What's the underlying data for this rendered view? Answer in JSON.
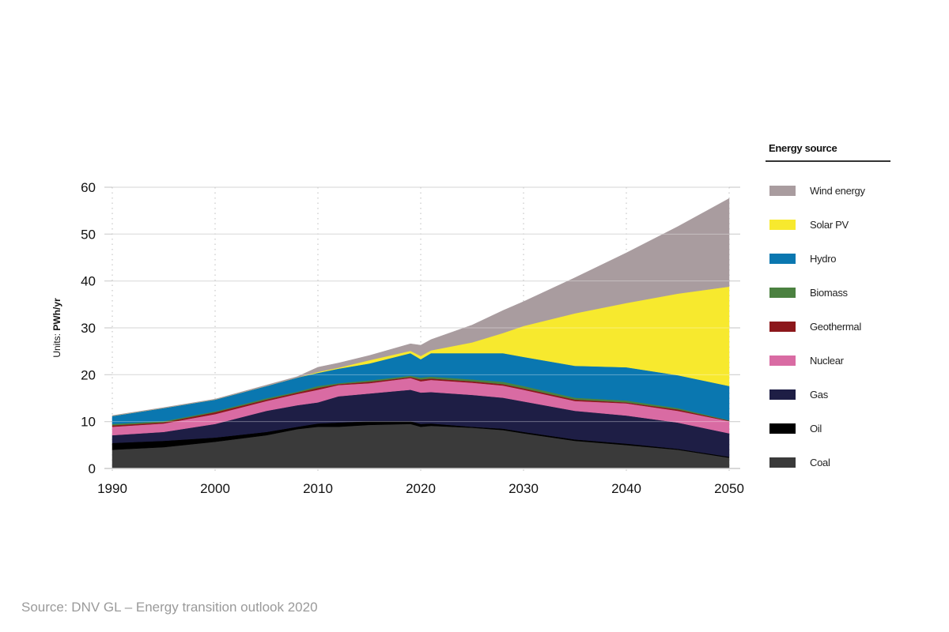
{
  "chart_data": {
    "type": "area",
    "stacked": true,
    "title": "",
    "xlabel": "",
    "ylabel_prefix": "Units: ",
    "ylabel_unit": "PWh/yr",
    "xlim": [
      1990,
      2050
    ],
    "ylim": [
      0,
      60
    ],
    "xticks": [
      "1990",
      "2000",
      "2010",
      "2020",
      "2030",
      "2040",
      "2050"
    ],
    "yticks": [
      "0",
      "10",
      "20",
      "30",
      "40",
      "50",
      "60"
    ],
    "grid": "horizontal solid, vertical dotted",
    "legend_title": "Energy source",
    "legend_position": "right",
    "x": [
      1990,
      1995,
      2000,
      2005,
      2008,
      2010,
      2012,
      2015,
      2019,
      2020,
      2021,
      2025,
      2028,
      2030,
      2035,
      2040,
      2045,
      2050
    ],
    "series": [
      {
        "name": "Coal",
        "color": "#3a3a3a",
        "values": [
          4.0,
          4.55,
          5.7,
          7.1,
          8.4,
          8.9,
          8.9,
          9.3,
          9.5,
          8.9,
          9.1,
          8.7,
          8.2,
          7.5,
          5.9,
          5.0,
          4.0,
          2.3
        ]
      },
      {
        "name": "Oil",
        "color": "#000000",
        "values": [
          1.45,
          1.35,
          0.9,
          0.7,
          0.5,
          0.7,
          0.9,
          0.8,
          0.6,
          0.6,
          0.5,
          0.2,
          0.3,
          0.3,
          0.3,
          0.3,
          0.2,
          0.2
        ]
      },
      {
        "name": "Gas",
        "color": "#1e1e45",
        "values": [
          1.65,
          1.9,
          2.9,
          4.5,
          4.6,
          4.5,
          5.6,
          5.9,
          6.7,
          6.7,
          6.7,
          6.8,
          6.6,
          6.5,
          6.1,
          6.0,
          5.6,
          5.0
        ]
      },
      {
        "name": "Nuclear",
        "color": "#d96ba3",
        "values": [
          1.8,
          1.8,
          2.1,
          2.1,
          2.4,
          2.7,
          2.4,
          2.2,
          2.5,
          2.4,
          2.6,
          2.6,
          2.6,
          2.5,
          2.1,
          2.6,
          2.5,
          2.6
        ]
      },
      {
        "name": "Geothermal",
        "color": "#8c171b",
        "values": [
          0.3,
          0.25,
          0.4,
          0.3,
          0.3,
          0.4,
          0.2,
          0.3,
          0.2,
          0.4,
          0.3,
          0.3,
          0.3,
          0.3,
          0.3,
          0.2,
          0.3,
          0.1
        ]
      },
      {
        "name": "Biomass",
        "color": "#4b8140",
        "values": [
          0.3,
          0.25,
          0.2,
          0.3,
          0.2,
          0.4,
          0.2,
          0.3,
          0.3,
          0.4,
          0.4,
          0.4,
          0.5,
          0.5,
          0.4,
          0.4,
          0.3,
          0.1
        ]
      },
      {
        "name": "Hydro",
        "color": "#0a77b0",
        "values": [
          1.7,
          2.8,
          2.5,
          2.6,
          3.0,
          2.8,
          3.1,
          3.6,
          4.8,
          3.9,
          5.0,
          5.6,
          6.1,
          6.2,
          6.8,
          7.1,
          7.0,
          7.3
        ]
      },
      {
        "name": "Solar PV",
        "color": "#f7e92e",
        "values": [
          0,
          0,
          0,
          0,
          0,
          0.2,
          0.2,
          0.7,
          0.5,
          0.7,
          0.6,
          2.3,
          4.3,
          6.6,
          11.2,
          13.7,
          17.4,
          21.2
        ]
      },
      {
        "name": "Wind energy",
        "color": "#a99c9f",
        "values": [
          0.1,
          0.1,
          0.1,
          0.2,
          0.2,
          1.0,
          1.0,
          1.0,
          1.5,
          2.3,
          2.3,
          3.7,
          4.8,
          5.2,
          7.6,
          10.7,
          14.3,
          18.8
        ]
      }
    ],
    "legend_order": [
      "Wind energy",
      "Solar PV",
      "Hydro",
      "Biomass",
      "Geothermal",
      "Nuclear",
      "Gas",
      "Oil",
      "Coal"
    ]
  },
  "source": "Source: DNV GL – Energy transition outlook 2020"
}
